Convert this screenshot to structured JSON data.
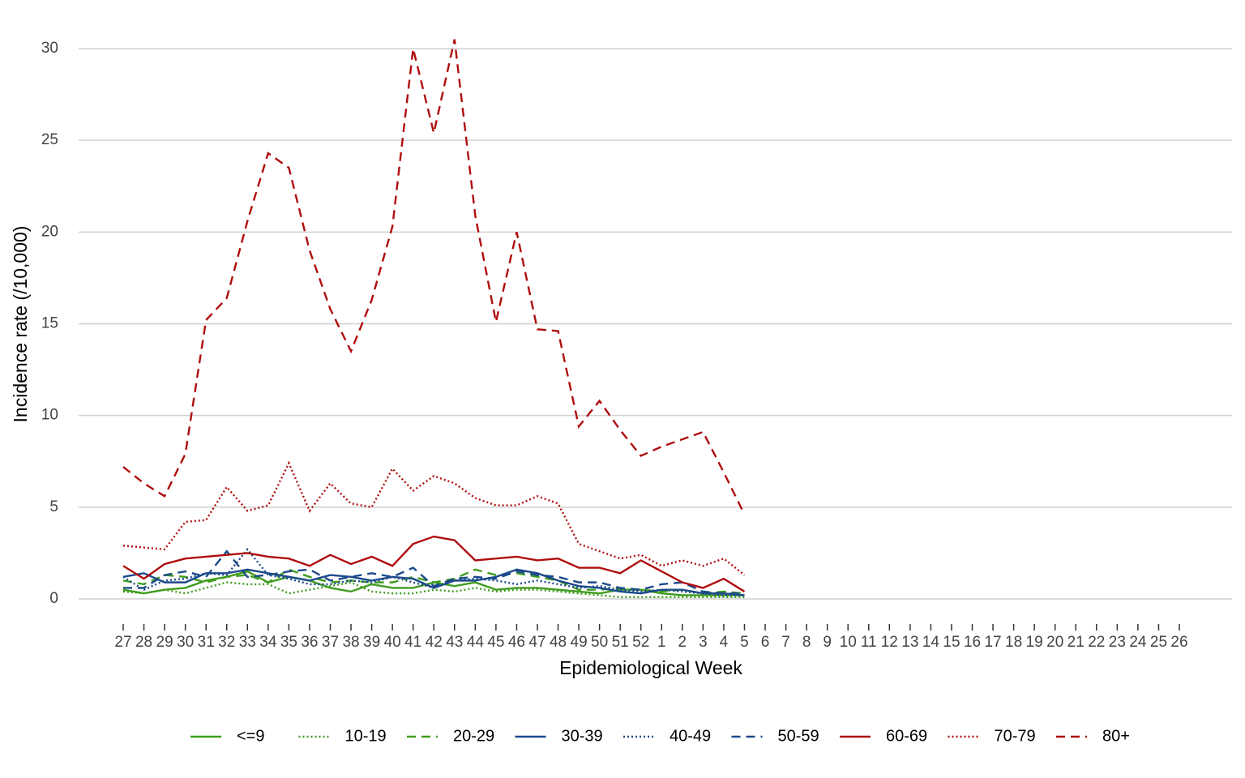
{
  "chart_data": {
    "type": "line",
    "x_label": "Epidemiological Week",
    "y_label": "Incidence rate (/10,000)",
    "categories": [
      "27",
      "28",
      "29",
      "30",
      "31",
      "32",
      "33",
      "34",
      "35",
      "36",
      "37",
      "38",
      "39",
      "40",
      "41",
      "42",
      "43",
      "44",
      "45",
      "46",
      "47",
      "48",
      "49",
      "50",
      "51",
      "52",
      "1",
      "2",
      "3",
      "4",
      "5",
      "6",
      "7",
      "8",
      "9",
      "10",
      "11",
      "12",
      "13",
      "14",
      "15",
      "16",
      "17",
      "18",
      "19",
      "20",
      "21",
      "22",
      "23",
      "24",
      "25",
      "26"
    ],
    "ylim": [
      0,
      30
    ],
    "yticks": [
      0,
      5,
      10,
      15,
      20,
      25,
      30
    ],
    "grid": true,
    "legend": "bottom",
    "series": [
      {
        "name": "<=9",
        "color": "#3f9c1e",
        "line_style": "solid",
        "values": [
          0.5,
          0.3,
          0.5,
          0.6,
          1.0,
          1.2,
          1.5,
          0.9,
          1.2,
          1.0,
          0.6,
          0.4,
          0.8,
          0.6,
          0.6,
          0.9,
          0.7,
          0.9,
          0.5,
          0.6,
          0.6,
          0.5,
          0.4,
          0.3,
          0.5,
          0.5,
          0.3,
          0.2,
          0.2,
          0.2,
          0.2,
          null,
          null,
          null,
          null,
          null,
          null,
          null,
          null,
          null,
          null,
          null,
          null,
          null,
          null,
          null,
          null,
          null,
          null,
          null,
          null,
          null
        ]
      },
      {
        "name": "10-19",
        "color": "#3f9c1e",
        "line_style": "dotted",
        "values": [
          0.4,
          0.3,
          0.5,
          0.3,
          0.6,
          0.9,
          0.8,
          0.8,
          0.3,
          0.5,
          0.7,
          0.9,
          0.4,
          0.3,
          0.3,
          0.5,
          0.4,
          0.6,
          0.4,
          0.5,
          0.5,
          0.4,
          0.3,
          0.2,
          0.1,
          0.1,
          0.1,
          0.1,
          0.1,
          0.1,
          0.1,
          null,
          null,
          null,
          null,
          null,
          null,
          null,
          null,
          null,
          null,
          null,
          null,
          null,
          null,
          null,
          null,
          null,
          null,
          null,
          null,
          null
        ]
      },
      {
        "name": "20-29",
        "color": "#3f9c1e",
        "line_style": "dashed",
        "values": [
          1.0,
          0.8,
          1.3,
          1.2,
          0.9,
          1.2,
          1.3,
          0.9,
          1.6,
          1.2,
          0.9,
          1.0,
          0.9,
          0.9,
          1.2,
          0.9,
          1.1,
          1.6,
          1.3,
          1.4,
          1.2,
          1.0,
          0.5,
          0.5,
          0.6,
          0.5,
          0.4,
          0.5,
          0.3,
          0.4,
          0.3,
          null,
          null,
          null,
          null,
          null,
          null,
          null,
          null,
          null,
          null,
          null,
          null,
          null,
          null,
          null,
          null,
          null,
          null,
          null,
          null,
          null
        ]
      },
      {
        "name": "30-39",
        "color": "#1c4a8a",
        "line_style": "solid",
        "values": [
          1.2,
          1.4,
          0.9,
          0.9,
          1.4,
          1.4,
          1.6,
          1.4,
          1.2,
          1.0,
          1.3,
          1.2,
          1.0,
          1.2,
          1.1,
          0.6,
          1.0,
          1.0,
          1.2,
          1.6,
          1.4,
          1.0,
          0.7,
          0.6,
          0.4,
          0.3,
          0.5,
          0.5,
          0.3,
          0.3,
          0.2,
          null,
          null,
          null,
          null,
          null,
          null,
          null,
          null,
          null,
          null,
          null,
          null,
          null,
          null,
          null,
          null,
          null,
          null,
          null,
          null,
          null
        ]
      },
      {
        "name": "40-49",
        "color": "#1c4a8a",
        "line_style": "dotted",
        "values": [
          1.2,
          0.5,
          1.0,
          1.1,
          1.4,
          1.3,
          2.7,
          1.3,
          1.1,
          0.8,
          0.8,
          1.0,
          0.9,
          1.2,
          0.9,
          0.6,
          1.0,
          1.1,
          1.0,
          0.8,
          1.0,
          0.8,
          0.6,
          0.7,
          0.5,
          0.4,
          0.5,
          0.4,
          0.3,
          0.2,
          0.2,
          null,
          null,
          null,
          null,
          null,
          null,
          null,
          null,
          null,
          null,
          null,
          null,
          null,
          null,
          null,
          null,
          null,
          null,
          null,
          null,
          null
        ]
      },
      {
        "name": "50-59",
        "color": "#1c4a8a",
        "line_style": "dashed",
        "values": [
          0.6,
          0.6,
          1.3,
          1.5,
          1.2,
          2.6,
          1.2,
          1.3,
          1.5,
          1.6,
          1.0,
          1.2,
          1.4,
          1.2,
          1.7,
          0.7,
          1.1,
          1.2,
          1.1,
          1.5,
          1.3,
          1.2,
          0.9,
          0.9,
          0.6,
          0.5,
          0.8,
          0.9,
          0.4,
          0.3,
          0.3,
          null,
          null,
          null,
          null,
          null,
          null,
          null,
          null,
          null,
          null,
          null,
          null,
          null,
          null,
          null,
          null,
          null,
          null,
          null,
          null,
          null
        ]
      },
      {
        "name": "60-69",
        "color": "#b00d0d",
        "line_style": "solid",
        "values": [
          1.8,
          1.1,
          1.9,
          2.2,
          2.3,
          2.4,
          2.5,
          2.3,
          2.2,
          1.8,
          2.4,
          1.9,
          2.3,
          1.8,
          3.0,
          3.4,
          3.2,
          2.1,
          2.2,
          2.3,
          2.1,
          2.2,
          1.7,
          1.7,
          1.4,
          2.1,
          1.5,
          0.9,
          0.6,
          1.1,
          0.4,
          null,
          null,
          null,
          null,
          null,
          null,
          null,
          null,
          null,
          null,
          null,
          null,
          null,
          null,
          null,
          null,
          null,
          null,
          null,
          null,
          null
        ]
      },
      {
        "name": "70-79",
        "color": "#b00d0d",
        "line_style": "dotted",
        "values": [
          2.9,
          2.8,
          2.7,
          4.2,
          4.3,
          6.1,
          4.8,
          5.1,
          7.4,
          4.8,
          6.3,
          5.2,
          5.0,
          7.1,
          5.9,
          6.7,
          6.3,
          5.5,
          5.1,
          5.1,
          5.6,
          5.2,
          3.0,
          2.6,
          2.2,
          2.4,
          1.8,
          2.1,
          1.8,
          2.2,
          1.3,
          null,
          null,
          null,
          null,
          null,
          null,
          null,
          null,
          null,
          null,
          null,
          null,
          null,
          null,
          null,
          null,
          null,
          null,
          null,
          null,
          null
        ]
      },
      {
        "name": "80+",
        "color": "#b00d0d",
        "line_style": "dashed",
        "values": [
          7.2,
          6.3,
          5.6,
          7.9,
          15.2,
          16.4,
          20.6,
          24.3,
          23.5,
          19.0,
          15.8,
          13.5,
          16.3,
          20.3,
          30.0,
          25.4,
          30.5,
          20.9,
          15.1,
          20.0,
          14.7,
          14.6,
          9.4,
          10.8,
          9.2,
          7.8,
          8.3,
          8.7,
          9.1,
          6.9,
          4.6,
          null,
          null,
          null,
          null,
          null,
          null,
          null,
          null,
          null,
          null,
          null,
          null,
          null,
          null,
          null,
          null,
          null,
          null,
          null,
          null,
          null
        ]
      }
    ]
  }
}
